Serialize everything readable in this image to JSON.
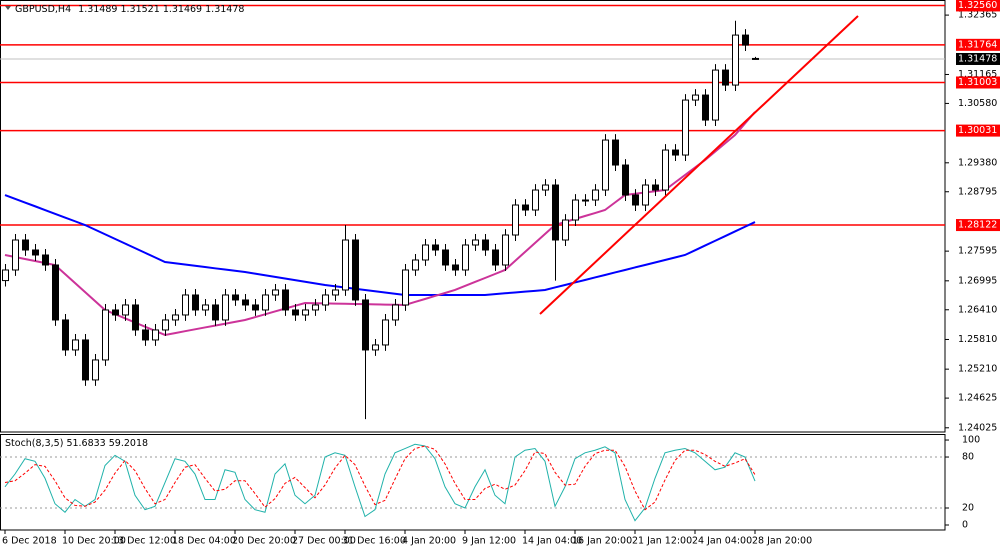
{
  "chart_data": [
    {
      "type": "candlestick",
      "title": "GBPUSD,H4",
      "categories": [
        "6 Dec 2018",
        null,
        null,
        null,
        null,
        null,
        "10 Dec 20:00",
        null,
        null,
        null,
        null,
        "13 Dec 12:00",
        null,
        null,
        null,
        null,
        null,
        "18 Dec 04:00",
        null,
        null,
        null,
        null,
        null,
        "20 Dec 20:00",
        null,
        null,
        null,
        null,
        null,
        "27 Dec 00:00",
        null,
        null,
        null,
        null,
        "31 Dec 16:00",
        null,
        null,
        null,
        null,
        null,
        "4 Jan 20:00",
        null,
        null,
        null,
        null,
        null,
        "9 Jan 12:00",
        null,
        null,
        null,
        null,
        null,
        "14 Jan 04:00",
        null,
        null,
        null,
        null,
        "16 Jan 20:00",
        null,
        null,
        null,
        null,
        null,
        "21 Jan 12:00",
        null,
        null,
        null,
        null,
        null,
        "24 Jan 04:00",
        null,
        null,
        null,
        null,
        null,
        "28 Jan 20:00"
      ],
      "open": [
        1.27,
        1.27214,
        1.2782,
        1.27618,
        1.27517,
        1.27315,
        1.26204,
        1.25598,
        1.258,
        1.24992,
        1.25396,
        1.26406,
        1.26305,
        1.26507,
        1.26002,
        1.258,
        1.26002,
        1.26204,
        1.26305,
        1.26709,
        1.26406,
        1.26507,
        1.26204,
        1.26709,
        1.26608,
        1.26507,
        1.26406,
        1.26709,
        1.2681,
        1.26406,
        1.26305,
        1.26406,
        1.26507,
        1.26709,
        1.2681,
        1.2782,
        1.26608,
        1.25598,
        1.25699,
        1.26204,
        1.26507,
        1.27214,
        1.27416,
        1.27719,
        1.27618,
        1.27315,
        1.27214,
        1.27719,
        1.2782,
        1.27618,
        1.27315,
        1.27921,
        1.28527,
        1.28426,
        1.2883,
        1.28931,
        1.2782,
        1.28224,
        1.28628,
        1.28628,
        1.2883,
        1.2984,
        1.29335,
        1.28729,
        1.28527,
        1.28931,
        1.2883,
        1.29638,
        1.29537,
        1.30648,
        1.30749,
        1.30244,
        1.31254,
        1.30951,
        1.31961,
        1.31489
      ],
      "high": [
        1.27334,
        1.2794,
        1.2794,
        1.27738,
        1.27637,
        1.27435,
        1.26324,
        1.2592,
        1.2592,
        1.25516,
        1.26526,
        1.26526,
        1.26627,
        1.26627,
        1.26122,
        1.26122,
        1.26324,
        1.26425,
        1.26829,
        1.26829,
        1.26627,
        1.26627,
        1.26829,
        1.26829,
        1.26728,
        1.26627,
        1.26829,
        1.2693,
        1.2693,
        1.26526,
        1.26526,
        1.26627,
        1.26829,
        1.2693,
        1.28122,
        1.2794,
        1.26728,
        1.25819,
        1.26324,
        1.26627,
        1.27334,
        1.27536,
        1.27839,
        1.27839,
        1.27738,
        1.27435,
        1.27839,
        1.2794,
        1.2794,
        1.27738,
        1.28041,
        1.28647,
        1.28647,
        1.2895,
        1.29051,
        1.29051,
        1.28344,
        1.28748,
        1.28748,
        1.2895,
        1.2996,
        1.2996,
        1.29455,
        1.28849,
        1.29051,
        1.29051,
        1.29758,
        1.29758,
        1.30768,
        1.30869,
        1.30869,
        1.31374,
        1.31374,
        1.3225,
        1.32081,
        1.31521
      ],
      "low": [
        1.2688,
        1.27094,
        1.27498,
        1.27397,
        1.27195,
        1.26084,
        1.25478,
        1.25478,
        1.24872,
        1.24872,
        1.25276,
        1.26185,
        1.26185,
        1.25882,
        1.2568,
        1.2568,
        1.25882,
        1.26084,
        1.26185,
        1.26286,
        1.26286,
        1.26084,
        1.26084,
        1.26488,
        1.26387,
        1.26286,
        1.26286,
        1.26589,
        1.26286,
        1.26185,
        1.26185,
        1.26286,
        1.26387,
        1.26589,
        1.2669,
        1.26488,
        1.242,
        1.25478,
        1.25579,
        1.26084,
        1.26387,
        1.27094,
        1.27296,
        1.27498,
        1.27195,
        1.27094,
        1.27094,
        1.27599,
        1.27498,
        1.27195,
        1.27195,
        1.27801,
        1.28306,
        1.28306,
        1.2871,
        1.27,
        1.277,
        1.28104,
        1.28508,
        1.28508,
        1.2871,
        1.29215,
        1.28609,
        1.28407,
        1.28407,
        1.2871,
        1.2871,
        1.29417,
        1.29417,
        1.30528,
        1.30124,
        1.30124,
        1.30831,
        1.30831,
        1.31639,
        1.31469
      ],
      "close": [
        1.27214,
        1.2782,
        1.27618,
        1.27517,
        1.27315,
        1.26204,
        1.25598,
        1.258,
        1.24992,
        1.25396,
        1.26406,
        1.26305,
        1.26507,
        1.26002,
        1.258,
        1.26002,
        1.26204,
        1.26305,
        1.26709,
        1.26406,
        1.26507,
        1.26204,
        1.26709,
        1.26608,
        1.26507,
        1.26406,
        1.26709,
        1.2681,
        1.26406,
        1.26305,
        1.26406,
        1.26507,
        1.26709,
        1.2681,
        1.2782,
        1.26608,
        1.25598,
        1.25699,
        1.26204,
        1.26507,
        1.27214,
        1.27416,
        1.27719,
        1.27618,
        1.27315,
        1.27214,
        1.27719,
        1.2782,
        1.27618,
        1.27315,
        1.27921,
        1.28527,
        1.28426,
        1.2883,
        1.28931,
        1.2782,
        1.28224,
        1.28628,
        1.28628,
        1.2883,
        1.2984,
        1.29335,
        1.28729,
        1.28527,
        1.28931,
        1.2883,
        1.29638,
        1.29537,
        1.30648,
        1.30749,
        1.30244,
        1.31254,
        1.30951,
        1.31961,
        1.31759,
        1.31478
      ],
      "up_color": "#ffffff",
      "down_color": "#000000",
      "overlays": [
        {
          "color": "#0000ff",
          "values": [
            1.28729,
            1.28653,
            1.28577,
            1.28502,
            1.28426,
            1.2835,
            1.28274,
            1.28199,
            1.28123,
            1.2803,
            1.27936,
            1.27843,
            1.27749,
            1.27656,
            1.27562,
            1.27469,
            1.27375,
            1.2735,
            1.27324,
            1.27299,
            1.27274,
            1.27248,
            1.27223,
            1.27198,
            1.27173,
            1.2714,
            1.27107,
            1.27075,
            1.27042,
            1.27009,
            1.26976,
            1.26944,
            1.26911,
            1.26886,
            1.2686,
            1.26835,
            1.2681,
            1.26785,
            1.26759,
            1.26734,
            1.26709,
            1.26709,
            1.26709,
            1.26709,
            1.26709,
            1.26709,
            1.26709,
            1.26709,
            1.26709,
            1.26726,
            1.26743,
            1.2676,
            1.26776,
            1.26793,
            1.2681,
            1.26861,
            1.26911,
            1.26962,
            1.27012,
            1.27063,
            1.27113,
            1.27164,
            1.27214,
            1.27265,
            1.27315,
            1.27366,
            1.27416,
            1.27467,
            1.27517,
            1.27612,
            1.27707,
            1.27802,
            1.27897,
            1.27993,
            1.28088,
            1.28183
          ]
        },
        {
          "color": "#cc3399",
          "values": [
            1.27517,
            1.27477,
            1.27436,
            1.27396,
            1.27355,
            1.27315,
            1.27133,
            1.26951,
            1.2677,
            1.26588,
            1.26406,
            1.26322,
            1.26238,
            1.26153,
            1.26069,
            1.25985,
            1.25901,
            1.25939,
            1.25977,
            1.26015,
            1.26053,
            1.2609,
            1.26128,
            1.26166,
            1.26204,
            1.26261,
            1.26318,
            1.26376,
            1.26433,
            1.2649,
            1.26547,
            1.26543,
            1.26539,
            1.26535,
            1.26531,
            1.26527,
            1.26523,
            1.26519,
            1.26515,
            1.26511,
            1.26507,
            1.26568,
            1.26628,
            1.26689,
            1.26749,
            1.2681,
            1.26891,
            1.26972,
            1.27052,
            1.27133,
            1.27214,
            1.27396,
            1.27578,
            1.27759,
            1.27941,
            1.28123,
            1.28184,
            1.28244,
            1.28305,
            1.28365,
            1.28426,
            1.28578,
            1.28729,
            1.28754,
            1.2878,
            1.28805,
            1.2883,
            1.28982,
            1.29133,
            1.29285,
            1.29436,
            1.29604,
            1.29773,
            1.29941,
            1.30174,
            1.30406
          ]
        }
      ],
      "levels": [
        {
          "value": 1.3256,
          "label": "1.32560"
        },
        {
          "value": 1.31764,
          "label": "1.31764"
        },
        {
          "value": 1.31003,
          "label": "1.31003"
        },
        {
          "value": 1.30031,
          "label": "1.30031"
        },
        {
          "value": 1.28122,
          "label": "1.28122"
        }
      ],
      "level_color": "#ff0000",
      "ylim": [
        1.2394,
        1.3267
      ],
      "yticks": [
        1.32365,
        {
          "value": 1.31165,
          "label": "1.31165"
        },
        {
          "value": 1.3058,
          "label": "1.30580"
        },
        {
          "value": 1.2938,
          "label": "1.29380"
        },
        1.28795,
        1.27595,
        1.26995,
        {
          "value": 1.2641,
          "label": "1.26410"
        },
        {
          "value": 1.2581,
          "label": "1.25810"
        },
        {
          "value": 1.2521,
          "label": "1.25210"
        },
        1.24625,
        1.24025
      ]
    },
    {
      "type": "line",
      "title": "Stoch(8,3,5)",
      "series": [
        {
          "color": "#20b2aa",
          "values": [
            45,
            60,
            78,
            75,
            55,
            25,
            15,
            30,
            22,
            30,
            70,
            82,
            75,
            35,
            18,
            22,
            50,
            78,
            75,
            60,
            30,
            30,
            65,
            62,
            30,
            18,
            15,
            60,
            72,
            35,
            25,
            35,
            80,
            85,
            82,
            45,
            10,
            18,
            60,
            85,
            90,
            95,
            93,
            78,
            45,
            25,
            20,
            45,
            65,
            35,
            25,
            80,
            88,
            90,
            75,
            22,
            45,
            78,
            85,
            88,
            92,
            85,
            30,
            5,
            20,
            55,
            85,
            88,
            90,
            85,
            75,
            65,
            68,
            85,
            80,
            51.6833
          ]
        },
        {
          "color": "#ff0000",
          "dash": true,
          "values": [
            50,
            52,
            61,
            71,
            69,
            52,
            32,
            23,
            22,
            27,
            41,
            61,
            76,
            64,
            43,
            25,
            30,
            50,
            68,
            71,
            55,
            40,
            42,
            52,
            52,
            37,
            21,
            31,
            49,
            56,
            44,
            32,
            47,
            67,
            82,
            71,
            46,
            24,
            29,
            54,
            78,
            90,
            93,
            89,
            72,
            49,
            30,
            30,
            43,
            48,
            42,
            47,
            64,
            86,
            84,
            62,
            47,
            48,
            69,
            84,
            88,
            88,
            69,
            40,
            18,
            27,
            53,
            76,
            88,
            88,
            83,
            75,
            69,
            73,
            78,
            59.2018
          ]
        }
      ],
      "ylim": [
        -5.9,
        107.1
      ],
      "yticks": [
        0,
        20,
        80,
        100
      ],
      "levels": [
        20,
        80
      ]
    }
  ]
}
